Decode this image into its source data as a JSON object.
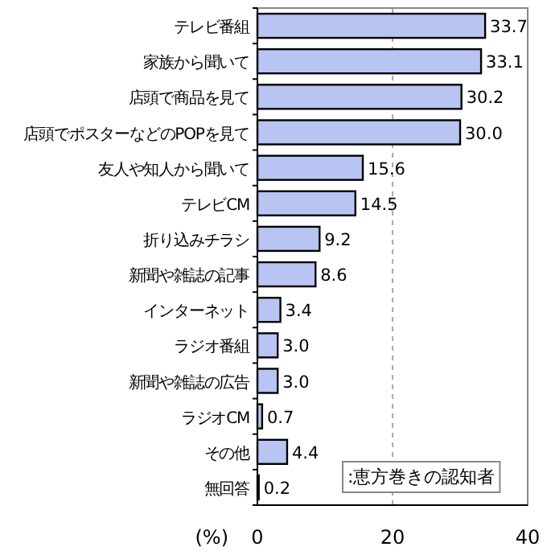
{
  "chart_data": {
    "type": "bar",
    "orientation": "horizontal",
    "xlabel": "(%)",
    "categories": [
      "テレビ番組",
      "家族から聞いて",
      "店頭で商品を見て",
      "店頭でポスターなどのPOPを見て",
      "友人や知人から聞いて",
      "テレビCM",
      "折り込みチラシ",
      "新聞や雑誌の記事",
      "インターネット",
      "ラジオ番組",
      "新聞や雑誌の広告",
      "ラジオCM",
      "その他",
      "無回答"
    ],
    "values": [
      33.7,
      33.1,
      30.2,
      30.0,
      15.6,
      14.5,
      9.2,
      8.6,
      3.4,
      3.0,
      3.0,
      0.7,
      4.4,
      0.2
    ],
    "value_labels": [
      "33.7",
      "33.1",
      "30.2",
      "30.0",
      "15.6",
      "14.5",
      "9.2",
      "8.6",
      "3.4",
      "3.0",
      "3.0",
      "0.7",
      "4.4",
      "0.2"
    ],
    "color": "#b8c4f2",
    "xlim": [
      0,
      40
    ],
    "xticks": [
      0,
      20,
      40
    ],
    "grid": "x",
    "annotations": [
      ":恵方巻きの認知者"
    ]
  }
}
